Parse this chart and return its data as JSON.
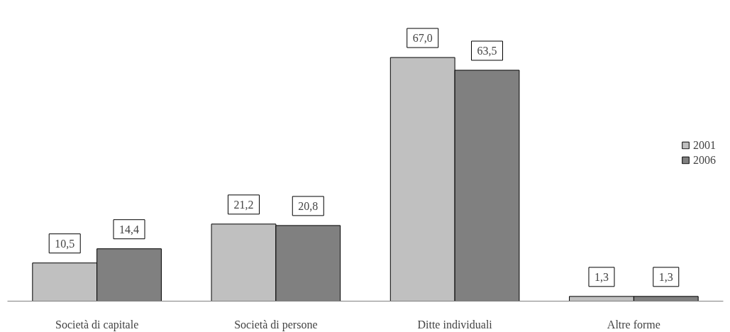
{
  "chart_data": {
    "type": "bar",
    "categories": [
      "Società di capitale",
      "Società di persone",
      "Ditte individuali",
      "Altre forme"
    ],
    "series": [
      {
        "name": "2001",
        "color": "#c0c0c0",
        "values": [
          10.5,
          21.2,
          67.0,
          1.3
        ],
        "value_labels": [
          "10,5",
          "21,2",
          "67,0",
          "1,3"
        ]
      },
      {
        "name": "2006",
        "color": "#808080",
        "values": [
          14.4,
          20.8,
          63.5,
          1.3
        ],
        "value_labels": [
          "14,4",
          "20,8",
          "63,5",
          "1,3"
        ]
      }
    ],
    "legend": "right",
    "grid": false
  }
}
